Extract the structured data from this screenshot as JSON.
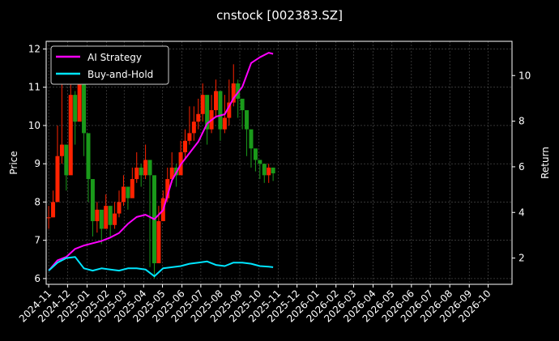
{
  "chart_data": {
    "type": "line",
    "title": "cnstock [002383.SZ]",
    "y_left_label": "Price",
    "y_right_label": "Return",
    "x_tick_labels": [
      "2024-11",
      "2024-12",
      "2025-01",
      "2025-02",
      "2025-03",
      "2025-04",
      "2025-05",
      "2025-06",
      "2025-07",
      "2025-08",
      "2025-09",
      "2025-10",
      "2025-11",
      "2025-12",
      "2026-01",
      "2026-02",
      "2026-03",
      "2026-04",
      "2026-05",
      "2026-06",
      "2026-07",
      "2026-08",
      "2026-09",
      "2026-10"
    ],
    "x_range": [
      "2024-10-28",
      "2026-11-08"
    ],
    "y_left_ticks": [
      6,
      7,
      8,
      9,
      10,
      11,
      12
    ],
    "y_left_range": [
      5.85,
      12.2
    ],
    "y_right_ticks": [
      2,
      4,
      6,
      8,
      10
    ],
    "y_right_range": [
      0.85,
      11.5
    ],
    "grid": true,
    "legend_position": "top-left",
    "colors": {
      "background": "#000000",
      "up": "#ff2200",
      "down": "#1a9a1a",
      "ai": "#ff00ff",
      "bh": "#00e5ff",
      "grid": "#555555"
    },
    "price_series": {
      "name": "",
      "dates": [
        "2024-11-01",
        "2024-11-08",
        "2024-11-15",
        "2024-11-22",
        "2024-11-29",
        "2024-12-06",
        "2024-12-13",
        "2024-12-20",
        "2024-12-27",
        "2025-01-03",
        "2025-01-10",
        "2025-01-17",
        "2025-01-24",
        "2025-01-31",
        "2025-02-07",
        "2025-02-14",
        "2025-02-21",
        "2025-02-28",
        "2025-03-07",
        "2025-03-14",
        "2025-03-21",
        "2025-03-28",
        "2025-04-04",
        "2025-04-11",
        "2025-04-18",
        "2025-04-25",
        "2025-05-02",
        "2025-05-09",
        "2025-05-16",
        "2025-05-23",
        "2025-05-30",
        "2025-06-06",
        "2025-06-13",
        "2025-06-20",
        "2025-06-27",
        "2025-07-04",
        "2025-07-11",
        "2025-07-18",
        "2025-07-25",
        "2025-08-01",
        "2025-08-08",
        "2025-08-15",
        "2025-08-22",
        "2025-08-29",
        "2025-09-05",
        "2025-09-12",
        "2025-09-19",
        "2025-09-26",
        "2025-10-03",
        "2025-10-10",
        "2025-10-17",
        "2025-10-24"
      ],
      "close": [
        7.6,
        8.0,
        9.2,
        9.5,
        8.7,
        10.8,
        10.1,
        11.1,
        9.8,
        8.6,
        7.5,
        7.8,
        7.3,
        7.9,
        7.4,
        7.7,
        8.0,
        8.4,
        8.1,
        8.6,
        8.9,
        8.7,
        9.1,
        8.7,
        6.4,
        7.5,
        8.1,
        8.6,
        8.9,
        8.7,
        9.3,
        9.6,
        9.8,
        10.1,
        10.3,
        10.8,
        9.9,
        10.4,
        10.9,
        9.9,
        10.2,
        10.6,
        11.1,
        10.7,
        10.4,
        9.9,
        9.4,
        9.1,
        9.0,
        8.7,
        8.9,
        8.75
      ],
      "high": [
        7.9,
        8.3,
        10.0,
        11.2,
        9.3,
        11.2,
        10.9,
        11.6,
        10.7,
        9.0,
        7.8,
        8.0,
        7.7,
        8.2,
        7.8,
        8.0,
        8.3,
        8.7,
        8.4,
        8.9,
        9.3,
        9.0,
        9.5,
        9.1,
        8.6,
        7.9,
        8.3,
        8.9,
        9.3,
        9.0,
        9.6,
        9.9,
        10.5,
        10.5,
        10.7,
        11.1,
        10.5,
        10.8,
        11.2,
        10.4,
        10.8,
        11.2,
        11.6,
        11.2,
        10.6,
        10.1,
        9.6,
        9.3,
        9.1,
        8.9,
        9.0,
        8.9
      ],
      "low": [
        7.3,
        7.6,
        8.9,
        9.0,
        8.3,
        9.7,
        9.5,
        10.2,
        9.2,
        8.0,
        7.1,
        7.2,
        6.9,
        7.3,
        7.1,
        7.3,
        7.6,
        7.9,
        7.8,
        8.2,
        8.5,
        8.4,
        8.6,
        6.3,
        6.0,
        6.8,
        7.5,
        8.0,
        8.5,
        8.4,
        8.8,
        9.1,
        9.5,
        9.6,
        9.9,
        10.1,
        9.5,
        9.8,
        10.2,
        9.6,
        9.8,
        10.0,
        10.5,
        10.2,
        9.9,
        9.2,
        8.9,
        8.8,
        8.6,
        8.5,
        8.5,
        8.55
      ]
    },
    "series": [
      {
        "name": "AI Strategy",
        "dates": [
          "2024-11-01",
          "2024-11-15",
          "2024-11-29",
          "2024-12-13",
          "2024-12-27",
          "2025-01-10",
          "2025-01-24",
          "2025-02-07",
          "2025-02-21",
          "2025-03-07",
          "2025-03-21",
          "2025-04-04",
          "2025-04-18",
          "2025-05-02",
          "2025-05-16",
          "2025-05-30",
          "2025-06-13",
          "2025-06-27",
          "2025-07-11",
          "2025-07-25",
          "2025-08-08",
          "2025-08-22",
          "2025-09-05",
          "2025-09-19",
          "2025-10-03",
          "2025-10-17",
          "2025-10-24"
        ],
        "values": [
          1.45,
          1.9,
          2.05,
          2.4,
          2.55,
          2.65,
          2.75,
          2.9,
          3.1,
          3.5,
          3.8,
          3.9,
          3.7,
          4.1,
          5.4,
          6.1,
          6.6,
          7.1,
          7.9,
          8.2,
          8.3,
          9.0,
          9.5,
          10.55,
          10.8,
          11.0,
          10.95
        ]
      },
      {
        "name": "Buy-and-Hold",
        "dates": [
          "2024-11-01",
          "2024-11-15",
          "2024-11-29",
          "2024-12-13",
          "2024-12-27",
          "2025-01-10",
          "2025-01-24",
          "2025-02-07",
          "2025-02-21",
          "2025-03-07",
          "2025-03-21",
          "2025-04-04",
          "2025-04-18",
          "2025-05-02",
          "2025-05-16",
          "2025-05-30",
          "2025-06-13",
          "2025-06-27",
          "2025-07-11",
          "2025-07-25",
          "2025-08-08",
          "2025-08-22",
          "2025-09-05",
          "2025-09-19",
          "2025-10-03",
          "2025-10-17",
          "2025-10-24"
        ],
        "values": [
          1.45,
          1.8,
          2.0,
          2.05,
          1.55,
          1.45,
          1.55,
          1.5,
          1.45,
          1.55,
          1.55,
          1.5,
          1.2,
          1.55,
          1.6,
          1.65,
          1.75,
          1.8,
          1.85,
          1.7,
          1.65,
          1.8,
          1.8,
          1.75,
          1.65,
          1.62,
          1.6
        ]
      }
    ]
  }
}
